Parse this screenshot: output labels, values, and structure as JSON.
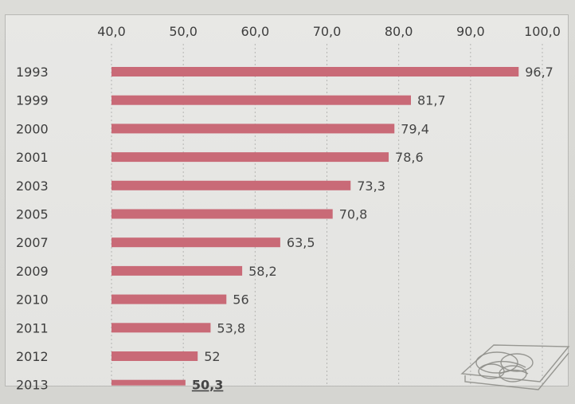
{
  "chart_data": {
    "type": "bar",
    "orientation": "horizontal",
    "categories": [
      "1993",
      "1999",
      "2000",
      "2001",
      "2003",
      "2005",
      "2007",
      "2009",
      "2010",
      "2011",
      "2012",
      "2013"
    ],
    "values": [
      96.7,
      81.7,
      79.4,
      78.6,
      73.3,
      70.8,
      63.5,
      58.2,
      56,
      53.8,
      52,
      50.3
    ],
    "value_labels": [
      "96,7",
      "81,7",
      "79,4",
      "78,6",
      "73,3",
      "70,8",
      "63,5",
      "58,2",
      "56",
      "53,8",
      "52",
      "50,3"
    ],
    "xlim": [
      40,
      100
    ],
    "xticks": [
      40,
      50,
      60,
      70,
      80,
      90,
      100
    ],
    "xtick_labels": [
      "40,0",
      "50,0",
      "60,0",
      "70,0",
      "80,0",
      "90,0",
      "100,0"
    ],
    "grid": true,
    "title": "",
    "xlabel": "",
    "ylabel": "",
    "bar_color": "#c96a77"
  }
}
